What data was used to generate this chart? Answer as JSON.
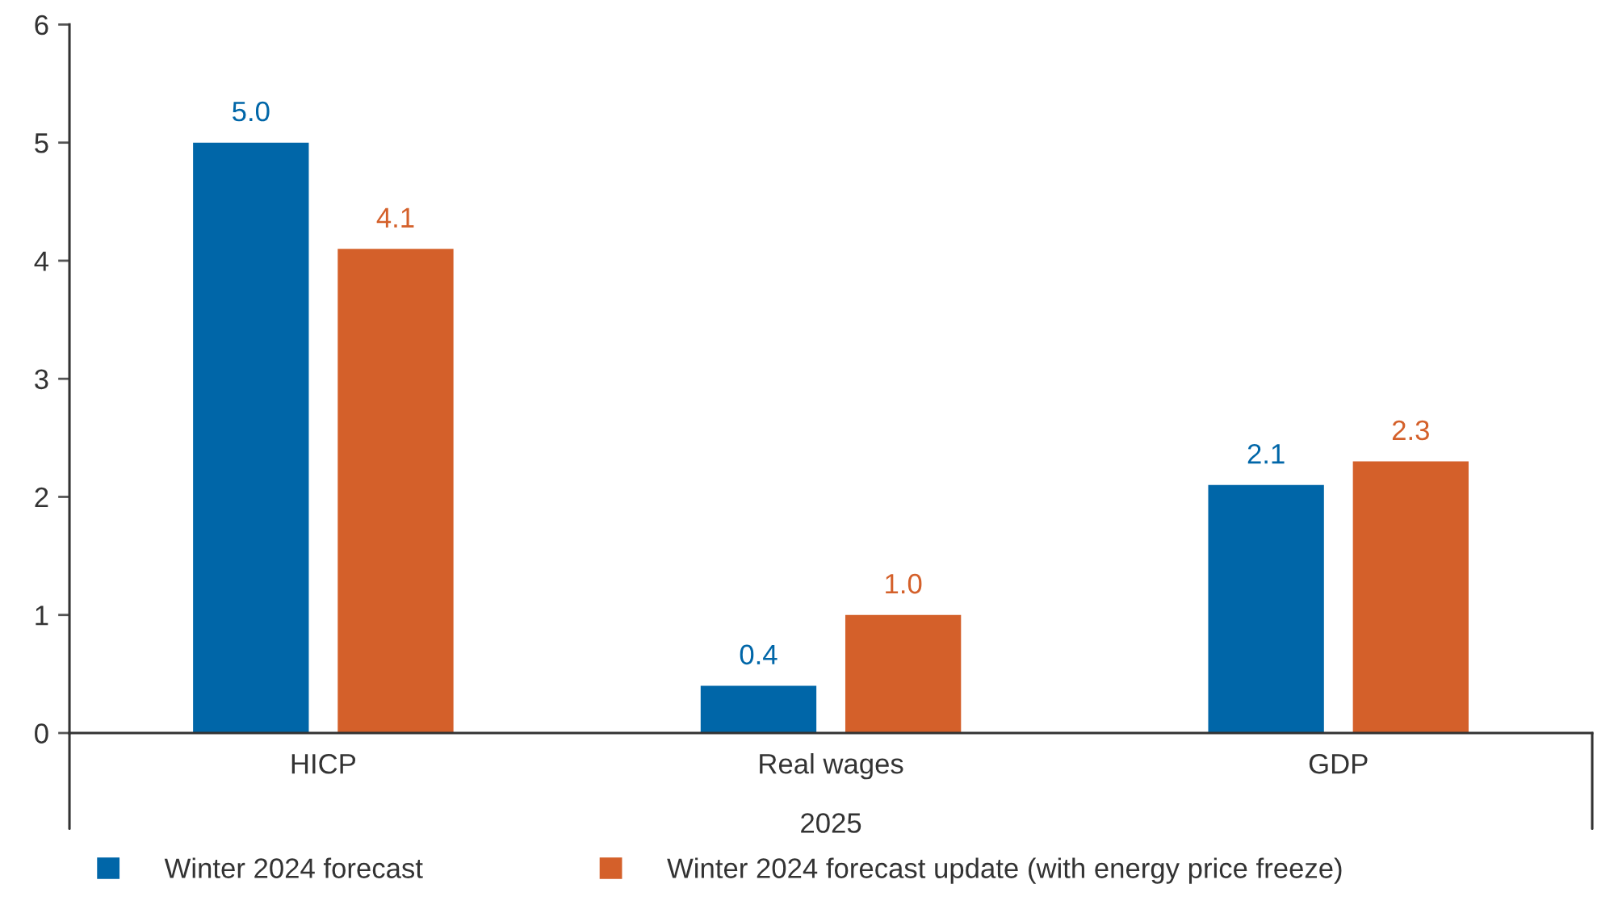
{
  "chart_data": {
    "type": "bar",
    "xlabel": "2025",
    "categories": [
      "HICP",
      "Real wages",
      "GDP"
    ],
    "series": [
      {
        "name": "Winter 2024 forecast",
        "color": "#0066a8",
        "values": [
          5.0,
          0.4,
          2.1
        ],
        "value_labels": [
          "5.0",
          "0.4",
          "2.1"
        ]
      },
      {
        "name": "Winter 2024 forecast update (with energy price freeze)",
        "color": "#d4602a",
        "values": [
          4.1,
          1.0,
          2.3
        ],
        "value_labels": [
          "4.1",
          "1.0",
          "2.3"
        ]
      }
    ],
    "ylim": [
      0,
      6
    ],
    "yticks": [
      0,
      1,
      2,
      3,
      4,
      5,
      6
    ],
    "grid": false,
    "legend": "bottom"
  }
}
